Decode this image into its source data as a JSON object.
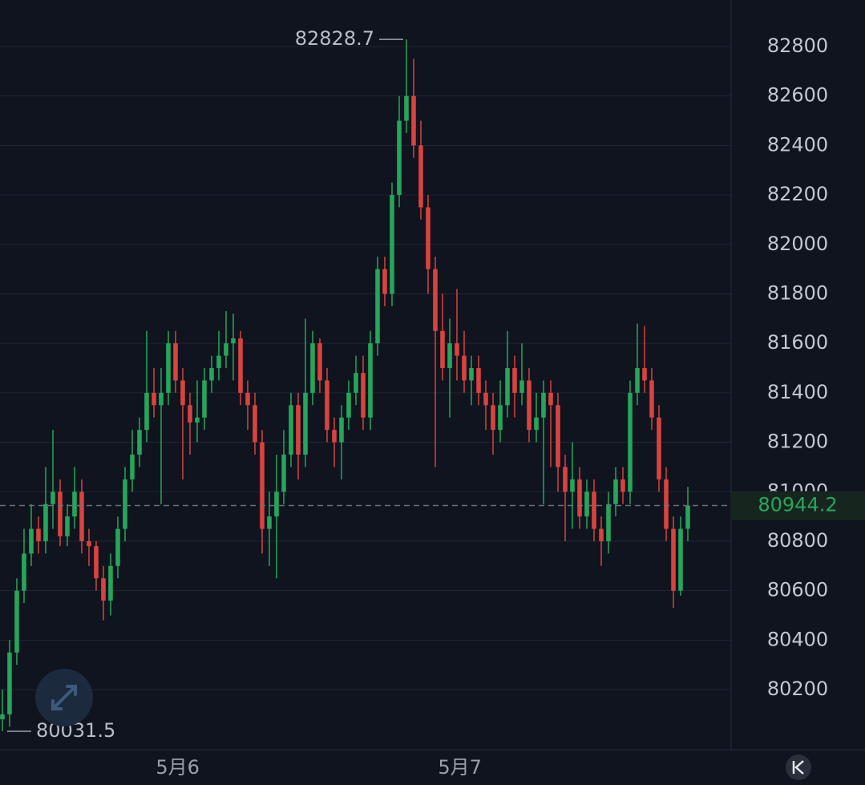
{
  "chart_data": {
    "type": "candlestick",
    "open": [
      80080,
      80100,
      80350,
      80600,
      80750,
      80850,
      80800,
      80950,
      81000,
      80820,
      80900,
      81000,
      80800,
      80780,
      80650,
      80560,
      80700,
      80850,
      81050,
      81150,
      81250,
      81400,
      81350,
      81400,
      81600,
      81450,
      81350,
      81280,
      81300,
      81450,
      81500,
      81550,
      81600,
      81620,
      81400,
      81350,
      81200,
      80850,
      80900,
      81000,
      81150,
      81350,
      81150,
      81400,
      81600,
      81450,
      81250,
      81200,
      81300,
      81400,
      81480,
      81300,
      81600,
      81900,
      81800,
      82200,
      82500,
      82600,
      82400,
      82150,
      81900,
      81650,
      81500,
      81600,
      81550,
      81450,
      81500,
      81400,
      81350,
      81250,
      81350,
      81500,
      81400,
      81450,
      81250,
      81300,
      81400,
      81350,
      81100,
      81000,
      81050,
      80900,
      81000,
      80850,
      80800,
      80950,
      81050,
      81000,
      81400,
      81500,
      81450,
      81300,
      81050,
      80850,
      80600,
      80850
    ],
    "high": [
      80200,
      80400,
      80650,
      80850,
      80950,
      80900,
      81100,
      81250,
      81050,
      80950,
      81100,
      81050,
      80850,
      80800,
      80700,
      80750,
      80900,
      81100,
      81250,
      81300,
      81650,
      81500,
      81500,
      81650,
      81650,
      81500,
      81400,
      81450,
      81500,
      81550,
      81650,
      81730,
      81720,
      81650,
      81450,
      81400,
      81250,
      81000,
      81150,
      81250,
      81400,
      81400,
      81700,
      81650,
      81620,
      81500,
      81300,
      81350,
      81450,
      81550,
      81550,
      81650,
      81950,
      81950,
      82250,
      82600,
      82828.7,
      82750,
      82500,
      82200,
      81950,
      81800,
      81700,
      81820,
      81650,
      81550,
      81550,
      81450,
      81400,
      81450,
      81650,
      81550,
      81600,
      81500,
      81400,
      81450,
      81450,
      81400,
      81150,
      81200,
      81100,
      81050,
      81050,
      80900,
      81000,
      81100,
      81100,
      81450,
      81680,
      81670,
      81500,
      81350,
      81100,
      80900,
      80900,
      81020
    ],
    "low": [
      80031.5,
      80050,
      80300,
      80550,
      80700,
      80750,
      80750,
      80850,
      80780,
      80780,
      80850,
      80750,
      80700,
      80600,
      80480,
      80500,
      80650,
      80800,
      81000,
      81100,
      81200,
      81300,
      80950,
      81350,
      81400,
      81050,
      81150,
      81200,
      81250,
      81400,
      81450,
      81500,
      81450,
      81350,
      81250,
      81150,
      80750,
      80700,
      80650,
      80950,
      81100,
      81050,
      81100,
      81350,
      81400,
      81200,
      81100,
      81050,
      81250,
      81350,
      81250,
      81250,
      81550,
      81750,
      81750,
      82150,
      82450,
      82350,
      82100,
      81800,
      81100,
      81450,
      81300,
      81450,
      81400,
      81350,
      81350,
      81250,
      81150,
      81200,
      81300,
      81300,
      81350,
      81200,
      81200,
      80950,
      81100,
      81000,
      80800,
      80850,
      80850,
      80850,
      80800,
      80700,
      80750,
      80900,
      80950,
      80950,
      81350,
      81400,
      81250,
      81000,
      80800,
      80530,
      80580,
      80800
    ],
    "close": [
      80100,
      80350,
      80600,
      80750,
      80850,
      80800,
      80950,
      81000,
      80820,
      80900,
      81000,
      80800,
      80780,
      80650,
      80560,
      80700,
      80850,
      81050,
      81150,
      81250,
      81400,
      81350,
      81400,
      81600,
      81450,
      81350,
      81280,
      81300,
      81450,
      81500,
      81550,
      81600,
      81620,
      81400,
      81350,
      81200,
      80850,
      80900,
      81000,
      81150,
      81350,
      81150,
      81400,
      81600,
      81450,
      81250,
      81200,
      81300,
      81400,
      81480,
      81300,
      81600,
      81900,
      81800,
      82200,
      82500,
      82600,
      82400,
      82150,
      81900,
      81650,
      81500,
      81600,
      81550,
      81450,
      81500,
      81400,
      81350,
      81250,
      81350,
      81500,
      81400,
      81450,
      81250,
      81300,
      81400,
      81350,
      81100,
      81000,
      81050,
      80900,
      81000,
      80850,
      80800,
      80950,
      81050,
      81000,
      81400,
      81500,
      81450,
      81300,
      81050,
      80850,
      80600,
      80850,
      80944.2
    ],
    "up_color": "#26a65b",
    "down_color": "#d9433f",
    "ylim": [
      79957,
      82988
    ],
    "yticks": [
      80200,
      80400,
      80600,
      80800,
      81000,
      81200,
      81400,
      81600,
      81800,
      82000,
      82200,
      82400,
      82600,
      82800
    ],
    "xlim": [
      -0.33,
      101
    ],
    "xticks": [
      {
        "value": 24.3,
        "label": "5月6"
      },
      {
        "value": 63.4,
        "label": "5月7"
      }
    ],
    "grid": true
  }
}
